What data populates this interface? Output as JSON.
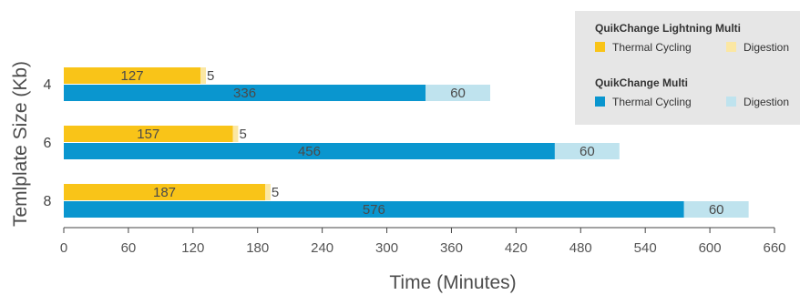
{
  "chart_data": {
    "type": "bar",
    "orientation": "horizontal",
    "stacked": true,
    "title": "",
    "xlabel": "Time (Minutes)",
    "ylabel": "Temlplate Size (Kb)",
    "xlim": [
      0,
      660
    ],
    "xticks": [
      0,
      60,
      120,
      180,
      240,
      300,
      360,
      420,
      480,
      540,
      600,
      660
    ],
    "categories": [
      "4",
      "6",
      "8"
    ],
    "groups": [
      {
        "name": "QuikChange Lightning Multi",
        "series": [
          {
            "name": "Thermal Cycling",
            "color": "#f9c418",
            "values": [
              127,
              157,
              187
            ]
          },
          {
            "name": "Digestion",
            "color": "#fbe7a3",
            "values": [
              5,
              5,
              5
            ]
          }
        ]
      },
      {
        "name": "QuikChange Multi",
        "series": [
          {
            "name": "Thermal Cycling",
            "color": "#0a96cf",
            "values": [
              336,
              456,
              576
            ]
          },
          {
            "name": "Digestion",
            "color": "#bfe3ee",
            "values": [
              60,
              60,
              60
            ]
          }
        ]
      }
    ],
    "legend": {
      "position": "top-right",
      "background": "#e6e6e6"
    },
    "grid": false
  }
}
